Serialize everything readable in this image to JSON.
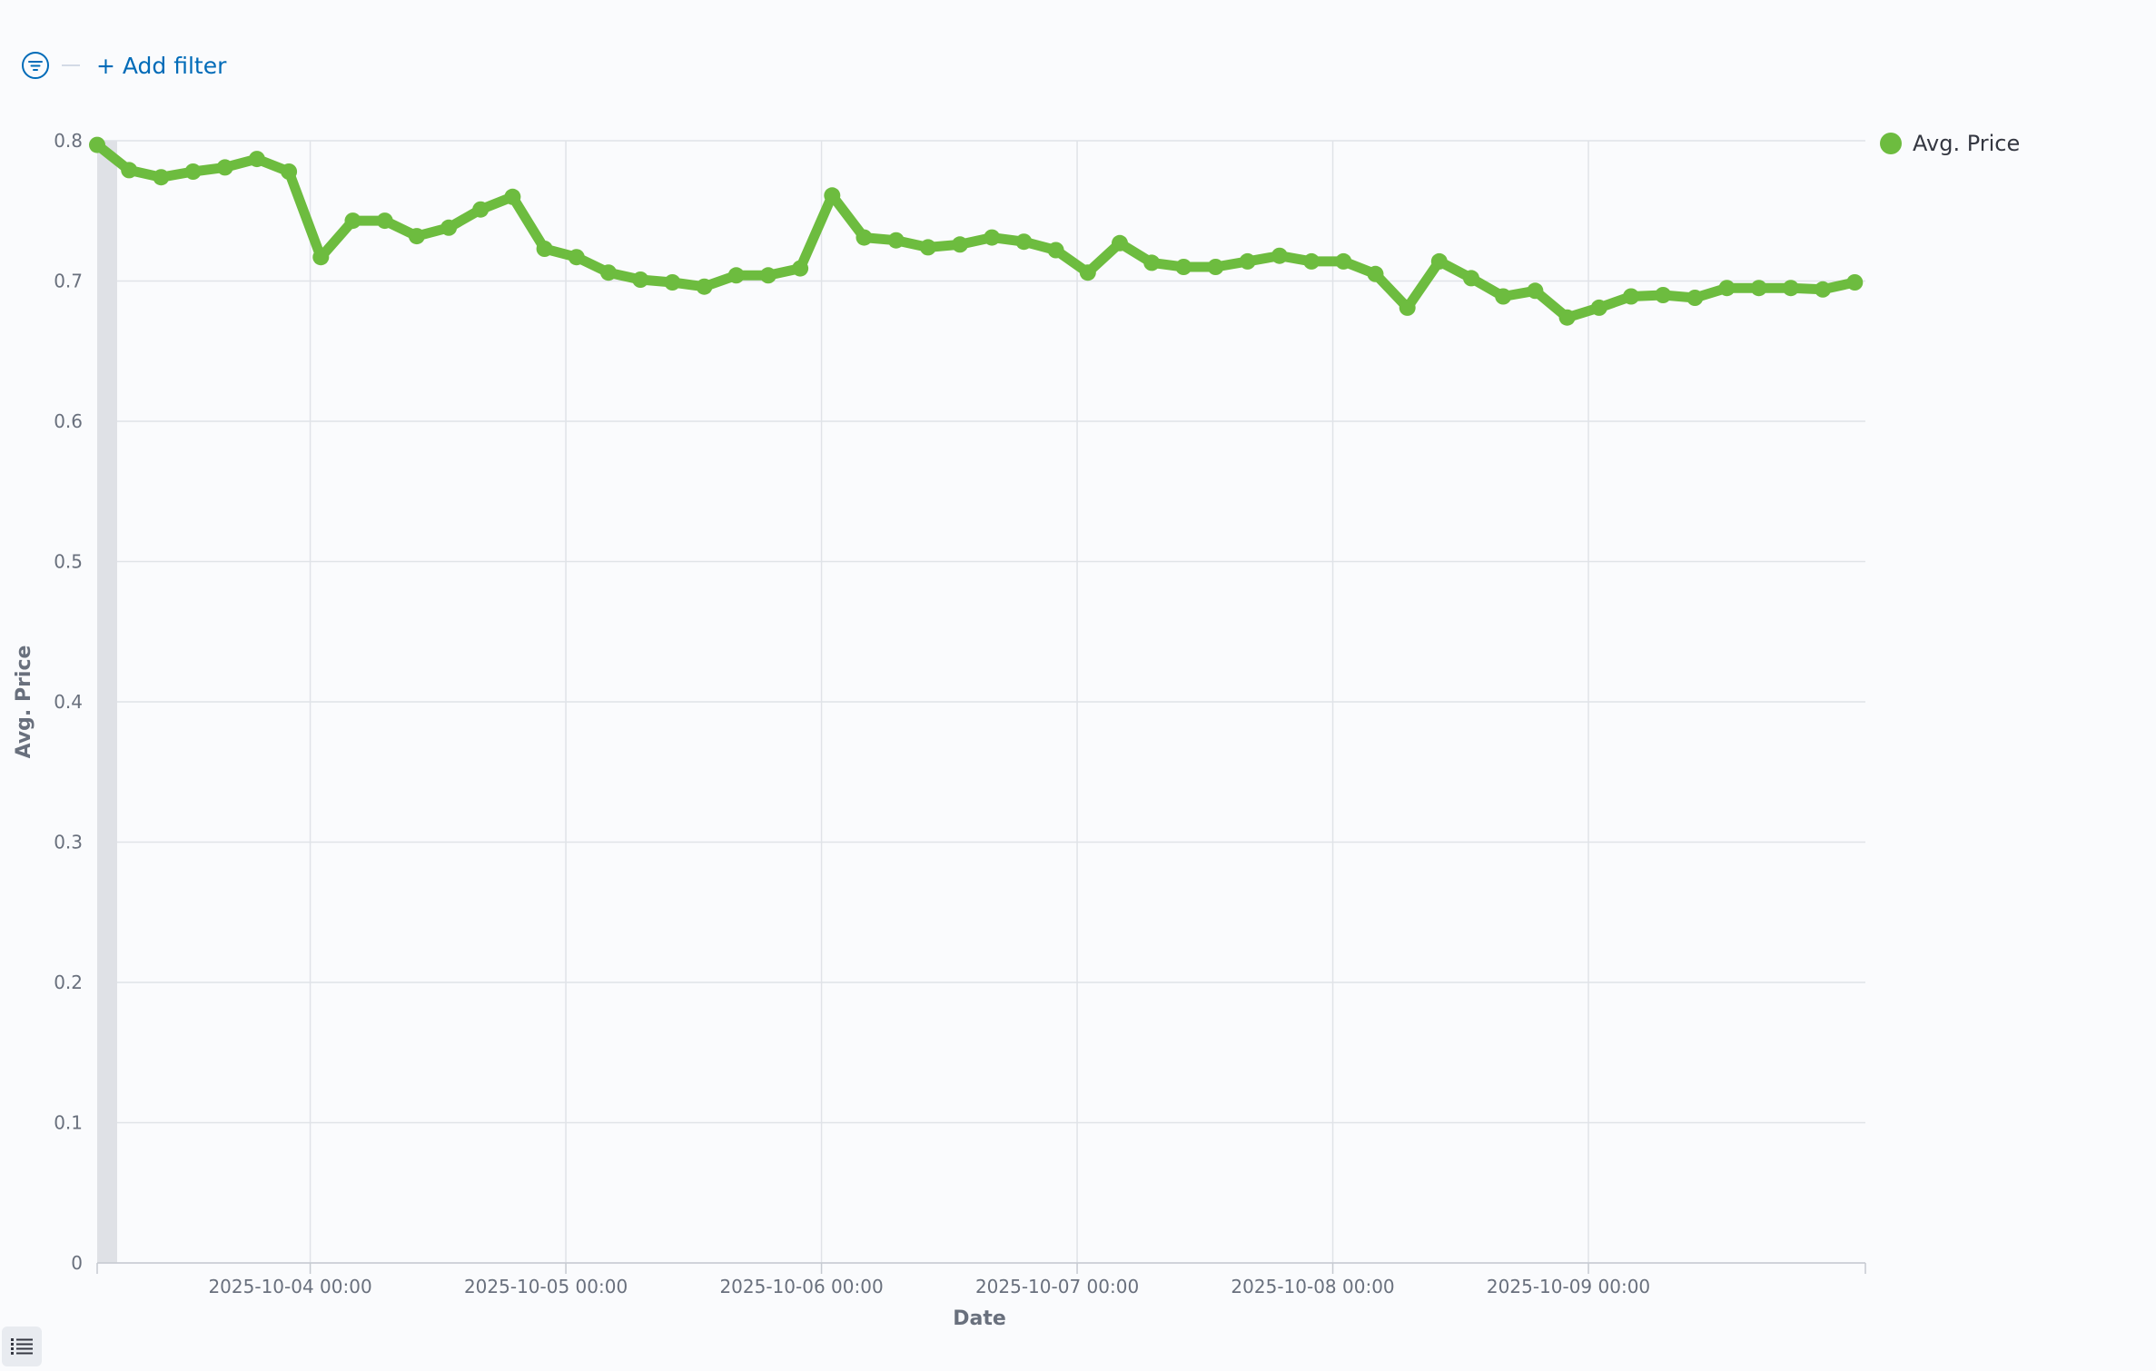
{
  "filter_bar": {
    "add_filter_label": "+ Add filter"
  },
  "chart_data": {
    "type": "line",
    "xlabel": "Date",
    "ylabel": "Avg. Price",
    "ylim": [
      0,
      0.8
    ],
    "y_ticks": [
      "0",
      "0.1",
      "0.2",
      "0.3",
      "0.4",
      "0.5",
      "0.6",
      "0.7",
      "0.8"
    ],
    "x_tick_labels": [
      "2025-10-04 00:00",
      "2025-10-05 00:00",
      "2025-10-06 00:00",
      "2025-10-07 00:00",
      "2025-10-08 00:00",
      "2025-10-09 00:00"
    ],
    "x_range": [
      "2025-10-03 04:00",
      "2025-10-10 02:00"
    ],
    "x_interval": "3h",
    "grid": true,
    "legend_position": "top-right",
    "series": [
      {
        "name": "Avg. Price",
        "color": "#6dbc3f",
        "x_start": "2025-10-03 04:00",
        "values": [
          0.797,
          0.779,
          0.774,
          0.778,
          0.781,
          0.787,
          0.778,
          0.717,
          0.743,
          0.743,
          0.732,
          0.738,
          0.751,
          0.76,
          0.723,
          0.717,
          0.706,
          0.701,
          0.699,
          0.696,
          0.704,
          0.704,
          0.709,
          0.761,
          0.731,
          0.729,
          0.724,
          0.726,
          0.731,
          0.728,
          0.722,
          0.706,
          0.727,
          0.713,
          0.71,
          0.71,
          0.714,
          0.718,
          0.714,
          0.714,
          0.705,
          0.681,
          0.714,
          0.702,
          0.689,
          0.693,
          0.674,
          0.681,
          0.689,
          0.69,
          0.688,
          0.695,
          0.695,
          0.695,
          0.694,
          0.699
        ]
      }
    ]
  }
}
